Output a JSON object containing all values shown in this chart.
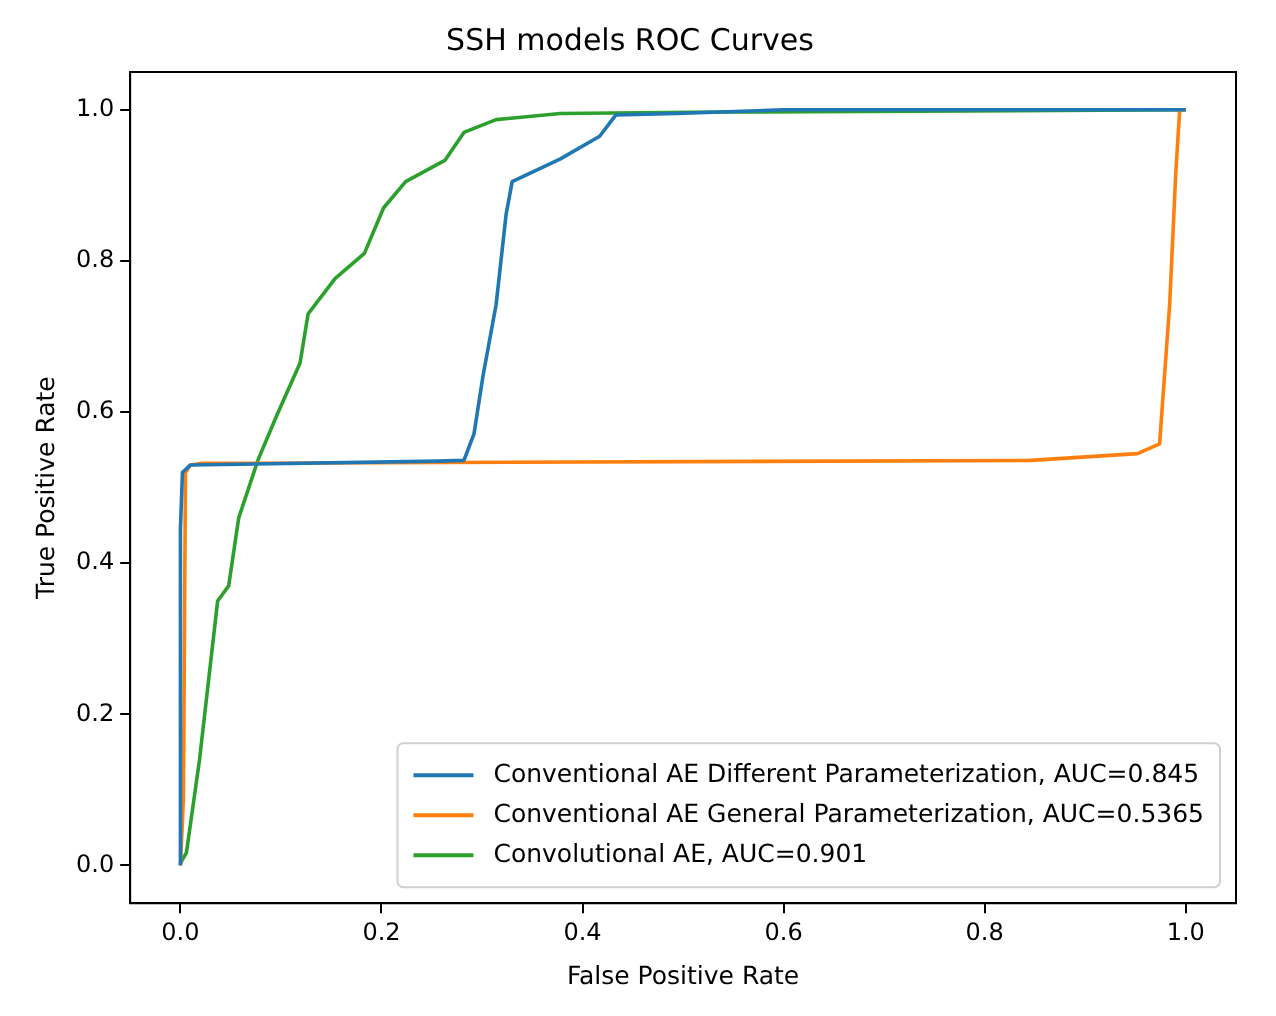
{
  "chart_data": {
    "type": "line",
    "title": "SSH models ROC Curves",
    "xlabel": "False Positive Rate",
    "ylabel": "True Positive Rate",
    "xlim": [
      -0.05,
      1.05
    ],
    "ylim": [
      -0.05,
      1.05
    ],
    "xticks": [
      {
        "value": 0,
        "label": "0.0"
      },
      {
        "value": 0.2,
        "label": "0.2"
      },
      {
        "value": 0.4,
        "label": "0.4"
      },
      {
        "value": 0.6,
        "label": "0.6"
      },
      {
        "value": 0.8,
        "label": "0.8"
      },
      {
        "value": 1,
        "label": "1.0"
      }
    ],
    "yticks": [
      {
        "value": 0,
        "label": "0.0"
      },
      {
        "value": 0.2,
        "label": "0.2"
      },
      {
        "value": 0.4,
        "label": "0.4"
      },
      {
        "value": 0.6,
        "label": "0.6"
      },
      {
        "value": 0.8,
        "label": "0.8"
      },
      {
        "value": 1,
        "label": "1.0"
      }
    ],
    "grid": false,
    "legend": "bottom right",
    "marker": "none",
    "line_style": "solid",
    "series": [
      {
        "name": "Conventional AE Different Parameterization, AUC=0.845",
        "color": "#1f77b4",
        "x": [
          0,
          0,
          0.002,
          0.01,
          0.256,
          0.282,
          0.292,
          0.301,
          0.314,
          0.324,
          0.33,
          0.378,
          0.417,
          0.433,
          0.494,
          0.6,
          1
        ],
        "values": [
          0,
          0.445,
          0.52,
          0.53,
          0.535,
          0.536,
          0.571,
          0.648,
          0.742,
          0.862,
          0.905,
          0.935,
          0.965,
          0.993,
          0.995,
          1,
          1
        ]
      },
      {
        "name": "Conventional AE General Parameterization, AUC=0.5365",
        "color": "#ff7f0e",
        "x": [
          0,
          0.003,
          0.005,
          0.01,
          0.02,
          0.846,
          0.952,
          0.974,
          0.984,
          0.99,
          0.994,
          1
        ],
        "values": [
          0,
          0.09,
          0.52,
          0.53,
          0.532,
          0.536,
          0.545,
          0.558,
          0.742,
          0.914,
          1,
          1
        ]
      },
      {
        "name": "Convolutional AE, AUC=0.901",
        "color": "#2ca02c",
        "x": [
          0,
          0.006,
          0.019,
          0.037,
          0.048,
          0.058,
          0.077,
          0.096,
          0.119,
          0.127,
          0.154,
          0.183,
          0.202,
          0.224,
          0.263,
          0.282,
          0.314,
          0.378,
          0.538,
          1
        ],
        "values": [
          0.003,
          0.017,
          0.14,
          0.35,
          0.37,
          0.46,
          0.536,
          0.596,
          0.665,
          0.73,
          0.777,
          0.81,
          0.87,
          0.905,
          0.933,
          0.97,
          0.987,
          0.995,
          0.997,
          1
        ]
      }
    ]
  }
}
